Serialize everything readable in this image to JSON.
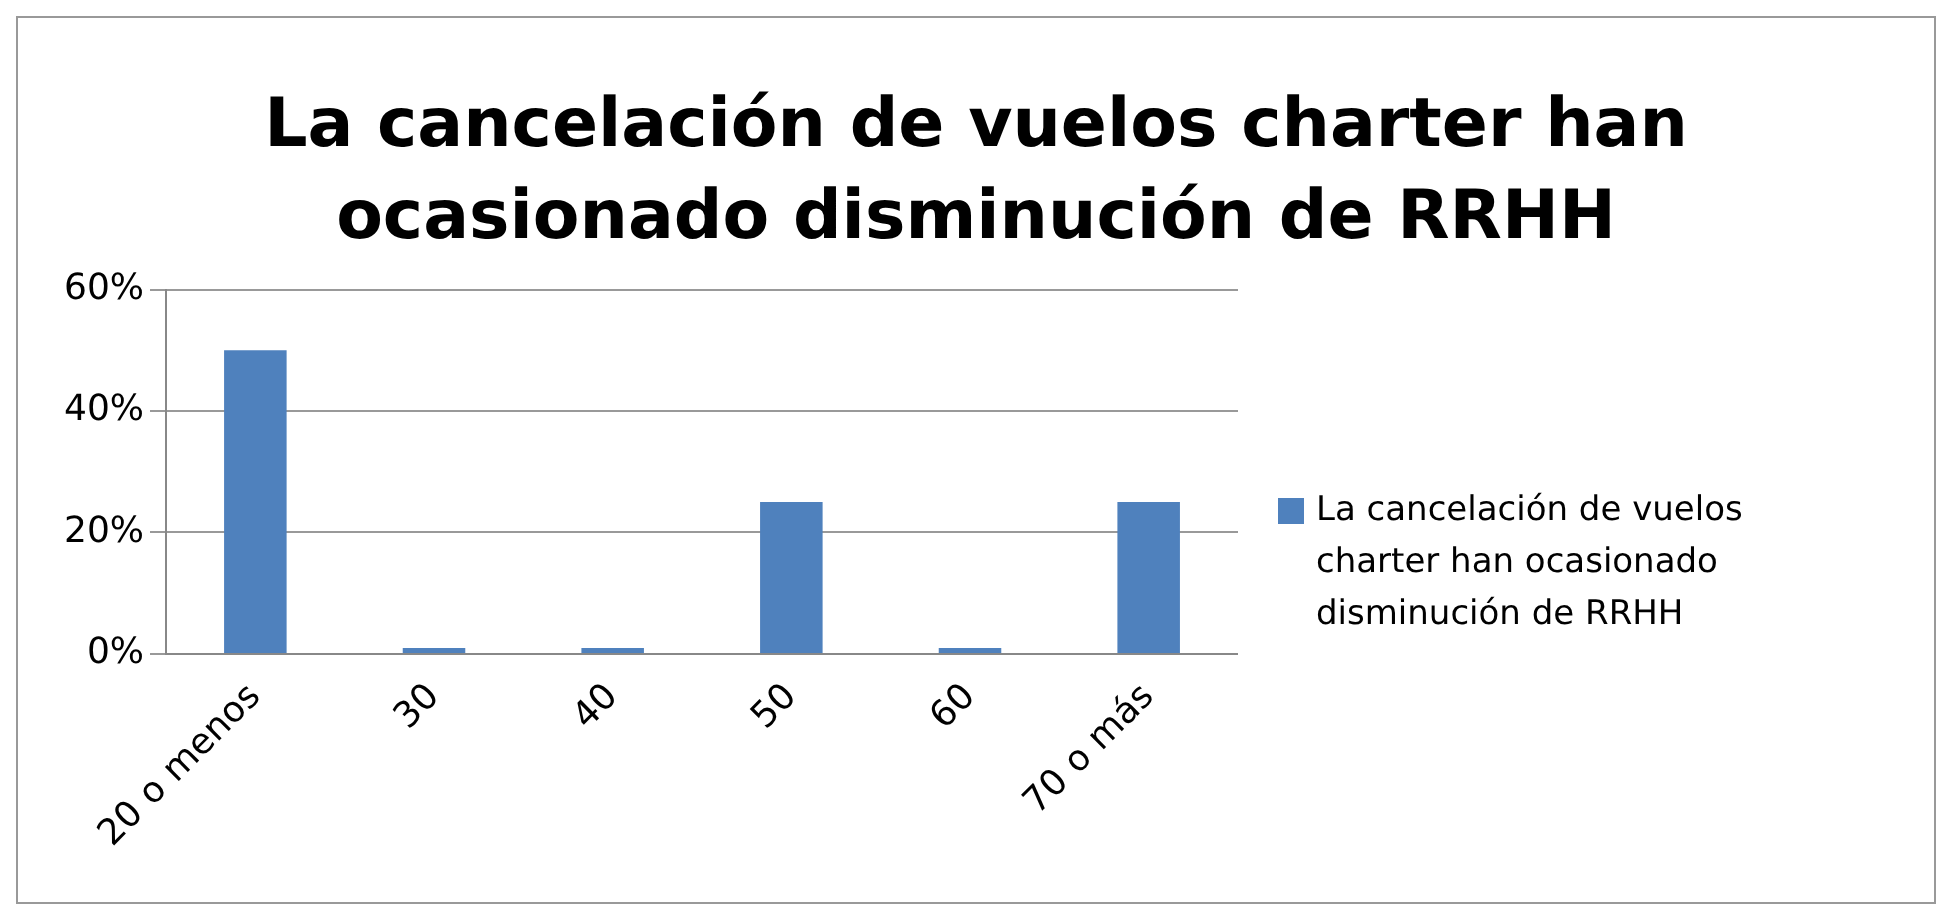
{
  "chart_data": {
    "type": "bar",
    "title": "La cancelación de vuelos charter han ocasionado disminución de RRHH",
    "categories": [
      "20 o menos",
      "30",
      "40",
      "50",
      "60",
      "70 o más"
    ],
    "series": [
      {
        "name": "La cancelación de vuelos charter han ocasionado disminución de RRHH",
        "color": "#4f81bd",
        "values": [
          50,
          0,
          0,
          25,
          0,
          25
        ]
      }
    ],
    "ylim": [
      0,
      60
    ],
    "yticks": [
      {
        "value": 0,
        "label": "0%"
      },
      {
        "value": 20,
        "label": "20%"
      },
      {
        "value": 40,
        "label": "40%"
      },
      {
        "value": 60,
        "label": "60%"
      }
    ],
    "grid": "y",
    "legend": "right"
  }
}
